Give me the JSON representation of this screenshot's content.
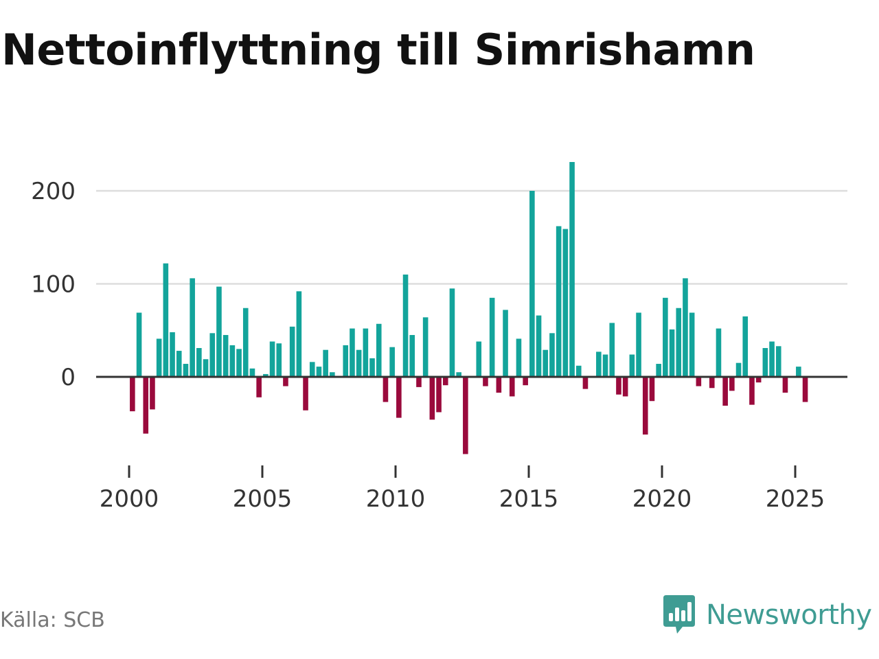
{
  "title": "Nettoinflyttning till Simrishamn",
  "source": "Källa: SCB",
  "brand": {
    "name": "Newsworthy",
    "icon": "newsworthy-logo-icon"
  },
  "colors": {
    "positive": "#13a49b",
    "negative": "#9a0a3c",
    "grid": "#dddddd",
    "zero": "#333333",
    "brand": "#3f9c93"
  },
  "chart_data": {
    "type": "bar",
    "title": "Nettoinflyttning till Simrishamn",
    "xlabel": "",
    "ylabel": "",
    "x_start": 2000.0,
    "x_step": 0.25,
    "ylim": [
      -85,
      235
    ],
    "grid": true,
    "yticks": [
      0,
      100,
      200
    ],
    "xticks": [
      2000,
      2005,
      2010,
      2015,
      2020,
      2025
    ],
    "values": [
      -37,
      69,
      -61,
      -35,
      41,
      122,
      48,
      28,
      14,
      106,
      31,
      19,
      47,
      97,
      45,
      34,
      30,
      74,
      9,
      -22,
      3,
      38,
      36,
      -10,
      54,
      92,
      -36,
      16,
      11,
      29,
      5,
      0,
      34,
      52,
      29,
      52,
      20,
      57,
      -27,
      32,
      -44,
      110,
      45,
      -11,
      64,
      -46,
      -38,
      -9,
      95,
      5,
      -83,
      0,
      38,
      -10,
      85,
      -17,
      72,
      -21,
      41,
      -9,
      200,
      66,
      29,
      47,
      162,
      159,
      231,
      12,
      -13,
      0,
      27,
      24,
      58,
      -19,
      -21,
      24,
      69,
      -62,
      -26,
      14,
      85,
      51,
      74,
      106,
      69,
      -10,
      0,
      -12,
      52,
      -31,
      -15,
      15,
      65,
      -30,
      -6,
      31,
      38,
      33,
      -17,
      0,
      11,
      -27
    ]
  }
}
